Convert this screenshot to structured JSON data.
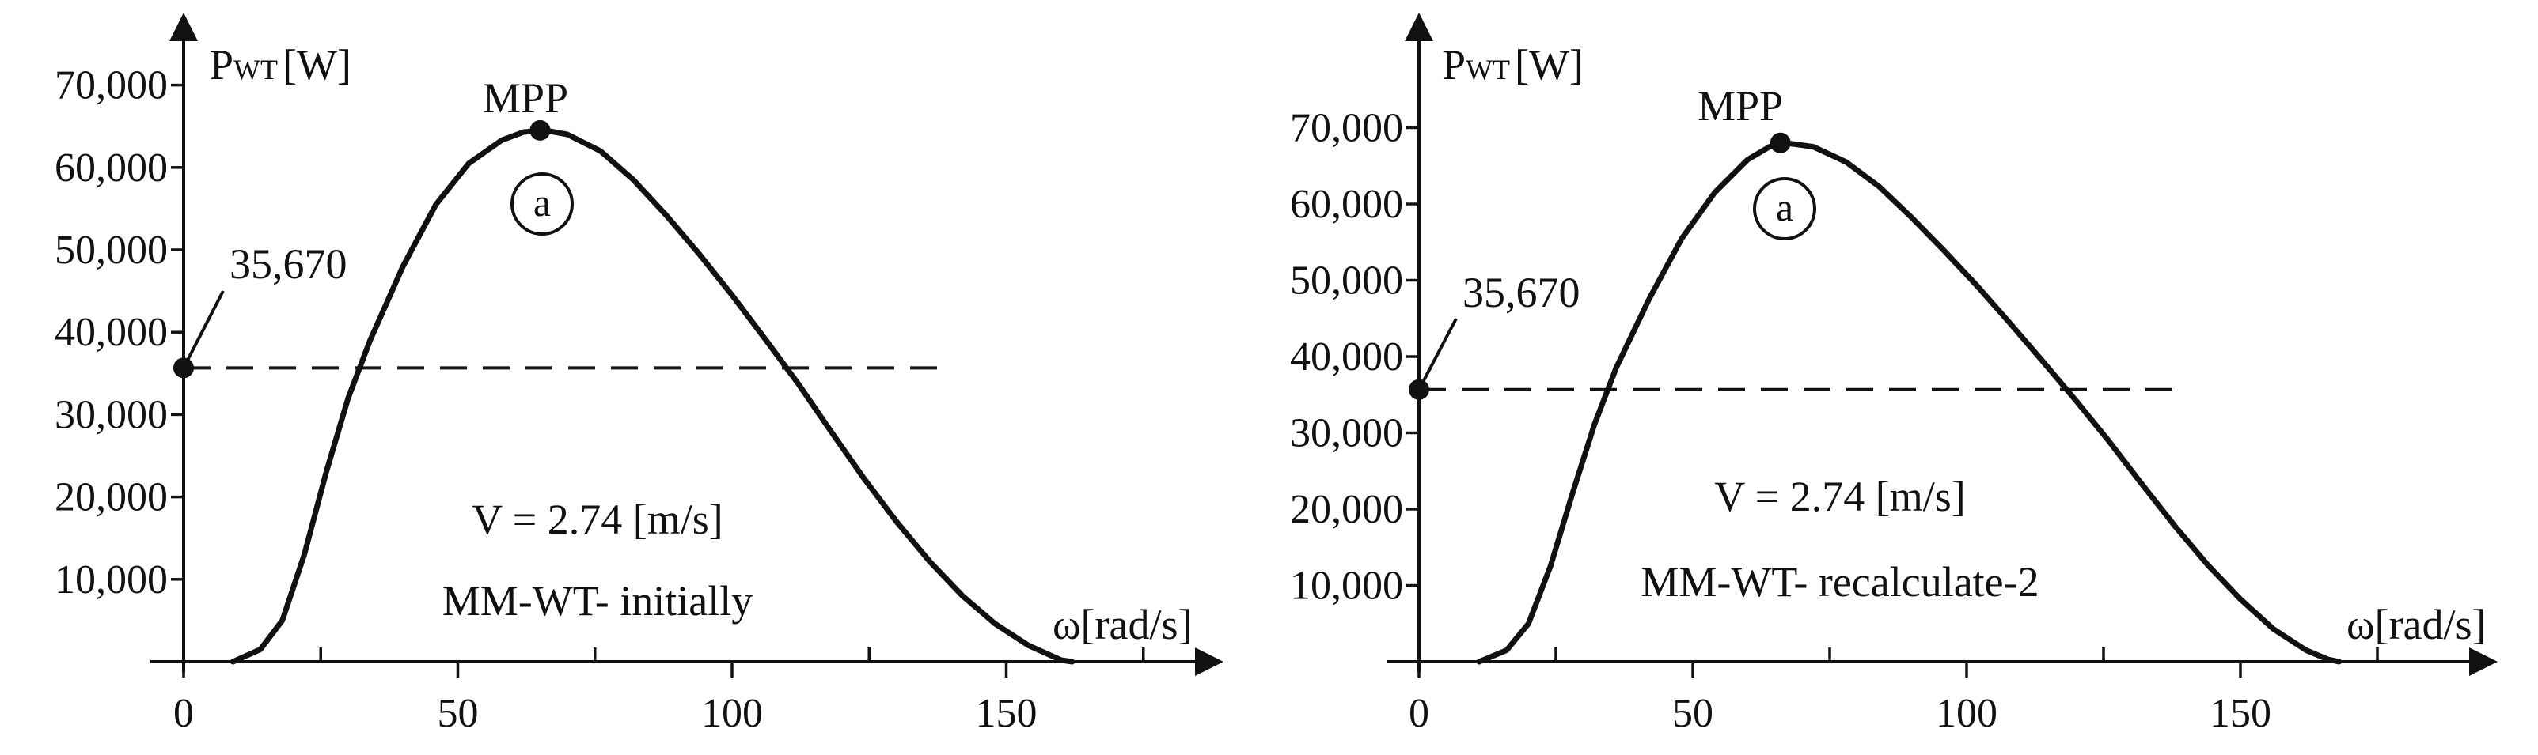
{
  "chart_data": [
    {
      "type": "line",
      "ylabel_main": "P",
      "ylabel_sub": "WT",
      "ylabel_unit": "[W]",
      "xlabel": "ω[rad/s]",
      "xlim": [
        0,
        190
      ],
      "ylim": [
        0,
        80000
      ],
      "x_ticks": [
        0,
        50,
        100,
        150
      ],
      "x_minor_ticks": [
        25,
        75,
        125,
        175
      ],
      "y_ticks": [
        10000,
        20000,
        30000,
        40000,
        50000,
        60000,
        70000
      ],
      "y_tick_labels": [
        "10,000",
        "20,000",
        "30,000",
        "40,000",
        "50,000",
        "60,000",
        "70,000"
      ],
      "x_tick_labels": [
        "0",
        "50",
        "100",
        "150"
      ],
      "series": [
        {
          "x": [
            9,
            14,
            18,
            22,
            26,
            30,
            34,
            40,
            46,
            52,
            58,
            62,
            66,
            70,
            76,
            82,
            88,
            94,
            100,
            106,
            112,
            118,
            124,
            130,
            136,
            142,
            148,
            154,
            158,
            160,
            162
          ],
          "y": [
            0,
            1500,
            5000,
            13000,
            23000,
            32000,
            39000,
            48000,
            55500,
            60500,
            63300,
            64300,
            64500,
            64000,
            62000,
            58500,
            54200,
            49500,
            44500,
            39200,
            33800,
            28000,
            22300,
            17000,
            12200,
            8000,
            4600,
            2000,
            800,
            200,
            0
          ]
        }
      ],
      "reference_line": {
        "y": 35670,
        "x_end": 140
      },
      "annotations": {
        "reference_label": "35,670",
        "mpp_label": "MPP",
        "mpp_point": {
          "x": 65,
          "y": 64500
        },
        "region_marker": "a",
        "speed": "V = 2.74 [m/s]",
        "model": "MM-WT- initially"
      }
    },
    {
      "type": "line",
      "ylabel_main": "P",
      "ylabel_sub": "WT",
      "ylabel_unit": "[W]",
      "xlabel": "ω[rad/s]",
      "xlim": [
        0,
        190
      ],
      "ylim": [
        0,
        80000
      ],
      "x_ticks": [
        0,
        50,
        100,
        150
      ],
      "x_minor_ticks": [
        25,
        75,
        125,
        175
      ],
      "y_ticks": [
        10000,
        20000,
        30000,
        40000,
        50000,
        60000,
        70000
      ],
      "y_tick_labels": [
        "10,000",
        "20,000",
        "30,000",
        "40,000",
        "50,000",
        "60,000",
        "70,000"
      ],
      "x_tick_labels": [
        "0",
        "50",
        "100",
        "150"
      ],
      "series": [
        {
          "x": [
            11,
            16,
            20,
            24,
            28,
            32,
            36,
            42,
            48,
            54,
            60,
            64,
            67,
            72,
            78,
            84,
            90,
            96,
            102,
            108,
            114,
            120,
            126,
            132,
            138,
            144,
            150,
            156,
            162,
            166,
            168
          ],
          "y": [
            0,
            1500,
            5000,
            12500,
            22000,
            31000,
            38500,
            47500,
            55500,
            61500,
            65800,
            67500,
            68000,
            67500,
            65500,
            62300,
            58200,
            53800,
            49200,
            44300,
            39300,
            34200,
            28900,
            23300,
            17800,
            12700,
            8200,
            4300,
            1500,
            300,
            0
          ]
        }
      ],
      "reference_line": {
        "y": 35670,
        "x_end": 140
      },
      "annotations": {
        "reference_label": "35,670",
        "mpp_label": "MPP",
        "mpp_point": {
          "x": 66,
          "y": 68000
        },
        "region_marker": "a",
        "speed": "V = 2.74 [m/s]",
        "model": "MM-WT- recalculate-2"
      }
    }
  ]
}
